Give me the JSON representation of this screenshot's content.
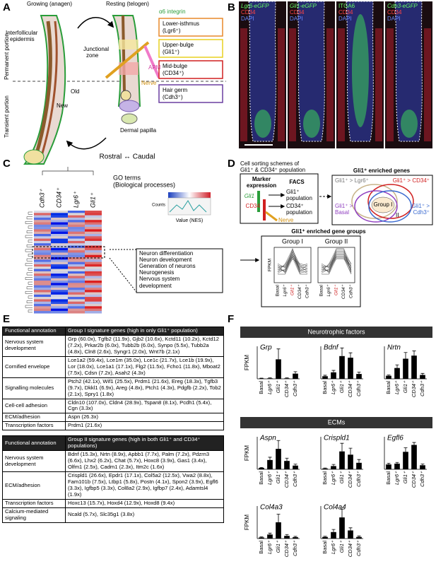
{
  "panel_labels": [
    "A",
    "B",
    "C",
    "D",
    "E",
    "F"
  ],
  "panel_a": {
    "stage_growing": "Growing (anagen)",
    "stage_resting": "Resting (telogen)",
    "integrin": "α6 integrin",
    "epidermis": [
      "Interfollicular",
      "epidermis"
    ],
    "junctional": [
      "Junctional",
      "zone"
    ],
    "regions": [
      [
        "Lower-isthmus",
        "(Lgr6⁺)"
      ],
      [
        "Upper-bulge",
        "(Gli1⁺)"
      ],
      [
        "Mid-bulge",
        "(CD34⁺)"
      ],
      [
        "Hair germ",
        "(Cdh3⁺)"
      ]
    ],
    "apm": "APM",
    "nerve": "Nerve",
    "old": "Old",
    "new": "New",
    "papilla": "Dermal papilla",
    "permanent": "Permanent portion",
    "transient": "Transient portion",
    "axis": "Rostral ↔ Caudal"
  },
  "panel_b": {
    "images": [
      {
        "marker": "Lgr6-eGFP",
        "stain": "CD34",
        "nucleus": "DAPI"
      },
      {
        "marker": "Gli1-eGFP",
        "stain": "CD34",
        "nucleus": "DAPI"
      },
      {
        "marker": "ITGA6",
        "stain": "CD34",
        "nucleus": "DAPI"
      },
      {
        "marker": "Cdh3-eGFP",
        "stain": "CD34",
        "nucleus": "DAPI"
      }
    ]
  },
  "panel_c": {
    "columns": [
      "Cdh3⁺",
      "CD34⁺",
      "Lgr6⁺",
      "Gli1⁺"
    ],
    "go_title": [
      "GO terms",
      "(Biological processes)"
    ],
    "key_counts": "Counts",
    "key_value": "Value (NES)",
    "terms": [
      "Neuron differentiation",
      "Neuron development",
      "Generation of neurons",
      "Neurogenesis",
      "Nervous system",
      "development"
    ]
  },
  "panel_d": {
    "title": [
      "Cell sorting schemes of",
      "Gli1⁺ & CD34⁺ population"
    ],
    "marker": [
      "Marker",
      "expression"
    ],
    "facs": "FACS",
    "gli1": "Gli1",
    "cd34": "CD34",
    "nerve": "Nerve",
    "gli1_pop": [
      "Gli1⁺",
      "population"
    ],
    "cd34_pop": [
      "CD34⁺",
      "population"
    ],
    "venn_title": "Gli1⁺ enriched genes",
    "venn_sets": [
      [
        "Gli1⁺ > Lgr6⁺"
      ],
      [
        "Gli1⁺ > CD34⁺"
      ],
      [
        "Gli1⁺ >",
        "Basal"
      ],
      [
        "Gli1⁺ >",
        "Cdh3⁺"
      ]
    ],
    "group1": "Group I",
    "group2": "II",
    "groups_title": "Gli1⁺ enriched gene groups",
    "plots": [
      "Group I",
      "Group II"
    ],
    "ylabel": "FPKM",
    "categories": [
      "Basal",
      "Lgr6⁺",
      "Gli1⁺",
      "CD34⁺",
      "Cdh3⁺"
    ]
  },
  "panel_e": {
    "tables": [
      {
        "header": [
          "Functional annotation",
          "Group I signature genes (high in only Gli1⁺ population)"
        ],
        "rows": [
          [
            "Nervous system development",
            "Grp (60.0x), Tgfb2 (11.9x), Gjb2 (10.6x), Kctd11 (10.2x), Kctd12 (7.2x), Prkar2b (6.0x), Tubb2b (6.0x), Synpo (5.5x), Tubb2a (4.8x), Cln8 (2.6x), Syngr1 (2.0x), Wnt7b (2.1x)"
          ],
          [
            "Cornified envelope",
            "Lce1a2 (59.4x), Lce1m (35.0x), Lce1c (21.7x), Lce1b (19.9x), Lor (18.0x), Lce1a1 (17.1x), Flg2 (11.5x), Fcho1 (11.8x), Mboat2 (7.5x), Cdsn (7.2x), Asah2 (4.3x)"
          ],
          [
            "Signalling molecules",
            "Ptch2 (42.1x), Wif1 (25.5x), Prdm1 (21.6x), Ereg (18.3x), Tgfb3 (9.7x), Dkkl1 (6.9x), Areg (4.8x), Ptch1 (4.3x), Pdgfb (2.2x), Tob2 (2.1x), Spry1 (1.8x)"
          ],
          [
            "Cell-cell adhesion",
            "Cldn10 (107.0x), Cldn4 (28.9x), Tspan8 (8.1x), Pcdh1 (5.4x), Cgn (3.3x)"
          ],
          [
            "ECM/adhesion",
            "Aspn (26.3x)"
          ],
          [
            "Transcription factors",
            "Prdm1 (21.6x)"
          ]
        ]
      },
      {
        "header": [
          "Functional annotation",
          "Group II signature genes (high in both Gli1⁺ and CD34⁺ populations)"
        ],
        "rows": [
          [
            "Nervous system development",
            "Bdnf (15.3x), Nrtn (8.9x), Apbb1 (7.7x), Palm (7.2x), Pdzrn3 (6.6x), Lhx2 (6.2x), Chat (5.7x), Hoxc8 (3.9x), Gas1 (3.4x), Olfm1 (2.5x), Cadm1 (2.3x), Itm2c (1.6x)"
          ],
          [
            "ECM/adhesion",
            "Crispld1 (26.6x), Epdr1 (17.1x), Col5a2 (12.5x), Vwa2 (8.8x), Fam101b (7.5x), Ltbp1 (5.8x), Postn (4.1x), Spon2 (3.9x), Egfl6 (3.3x), Igfbp5 (3.3x), Col8a2 (2.9x), Igfbp7 (2.4x), Adamtsl4 (1.9x)"
          ],
          [
            "Transcription factors",
            "Hoxc13 (15.7x), Hoxd4 (12.9x), Hoxd8 (9.4x)"
          ],
          [
            "Calcium-mediated signaling",
            "Ncald (5.7x), Slc35g1 (3.8x)"
          ]
        ]
      }
    ]
  },
  "panel_f": {
    "sections": [
      "Neurotrophic factors",
      "ECMs"
    ]
  },
  "chart_data": [
    {
      "type": "bar",
      "title": "Grp",
      "ylabel": "FPKM",
      "categories": [
        "Basal",
        "Lgr6⁺",
        "Gli1⁺",
        "CD34⁺",
        "Cdh3⁺"
      ],
      "values": [
        0.3,
        0.4,
        15,
        0.4,
        4
      ],
      "errors": [
        0.2,
        0.3,
        8,
        0.3,
        1.5
      ],
      "ylim": [
        0,
        25
      ],
      "color": "#000000"
    },
    {
      "type": "bar",
      "title": "Bdnf",
      "categories": [
        "Basal",
        "Lgr6⁺",
        "Gli1⁺",
        "CD34⁺",
        "Cdh3⁺"
      ],
      "values": [
        0.8,
        2,
        7,
        6.5,
        1.5
      ],
      "errors": [
        0.3,
        0.6,
        2.5,
        1.5,
        0.6
      ],
      "ylim": [
        0,
        10
      ],
      "color": "#000000"
    },
    {
      "type": "bar",
      "title": "Nrtn",
      "categories": [
        "Basal",
        "Lgr6⁺",
        "Gli1⁺",
        "CD34⁺",
        "Cdh3⁺"
      ],
      "values": [
        2,
        7,
        13,
        15,
        2.5
      ],
      "errors": [
        0.5,
        2,
        4,
        3,
        1
      ],
      "ylim": [
        0,
        21
      ],
      "color": "#000000"
    },
    {
      "type": "bar",
      "title": "Aspn",
      "ylabel": "FPKM",
      "categories": [
        "Basal",
        "Lgr6⁺",
        "Gli1⁺",
        "CD34⁺",
        "Cdh3⁺"
      ],
      "values": [
        1.5,
        10,
        22,
        9,
        4
      ],
      "errors": [
        0.5,
        3,
        9,
        3,
        1.5
      ],
      "ylim": [
        0,
        35
      ],
      "color": "#000000"
    },
    {
      "type": "bar",
      "title": "Crispld1",
      "categories": [
        "Basal",
        "Lgr6⁺",
        "Gli1⁺",
        "CD34⁺",
        "Cdh3⁺"
      ],
      "values": [
        0.5,
        2,
        11,
        9,
        4
      ],
      "errors": [
        0.3,
        1,
        5,
        4,
        2
      ],
      "ylim": [
        0,
        20
      ],
      "color": "#000000"
    },
    {
      "type": "bar",
      "title": "Egfl6",
      "categories": [
        "Basal",
        "Lgr6⁺",
        "Gli1⁺",
        "CD34⁺",
        "Cdh3⁺"
      ],
      "values": [
        1.2,
        1.4,
        4.3,
        6,
        1
      ],
      "errors": [
        0.3,
        0.3,
        1,
        0.6,
        0.3
      ],
      "ylim": [
        0,
        8
      ],
      "color": "#000000"
    },
    {
      "type": "bar",
      "title": "Col4a3",
      "ylabel": "FPKM",
      "categories": [
        "Basal",
        "Lgr6⁺",
        "Gli1⁺",
        "CD34⁺",
        "Cdh3⁺"
      ],
      "values": [
        0.4,
        1.5,
        6,
        1,
        0.5
      ],
      "errors": [
        0.2,
        0.5,
        3,
        0.5,
        0.3
      ],
      "ylim": [
        0,
        12
      ],
      "color": "#000000"
    },
    {
      "type": "bar",
      "title": "Col4a4",
      "categories": [
        "Basal",
        "Lgr6⁺",
        "Gli1⁺",
        "CD34⁺",
        "Cdh3⁺"
      ],
      "values": [
        0.5,
        2,
        6.5,
        2.5,
        0.5
      ],
      "errors": [
        0.2,
        0.8,
        2.5,
        0.8,
        0.3
      ],
      "ylim": [
        0,
        10
      ],
      "color": "#000000"
    }
  ]
}
